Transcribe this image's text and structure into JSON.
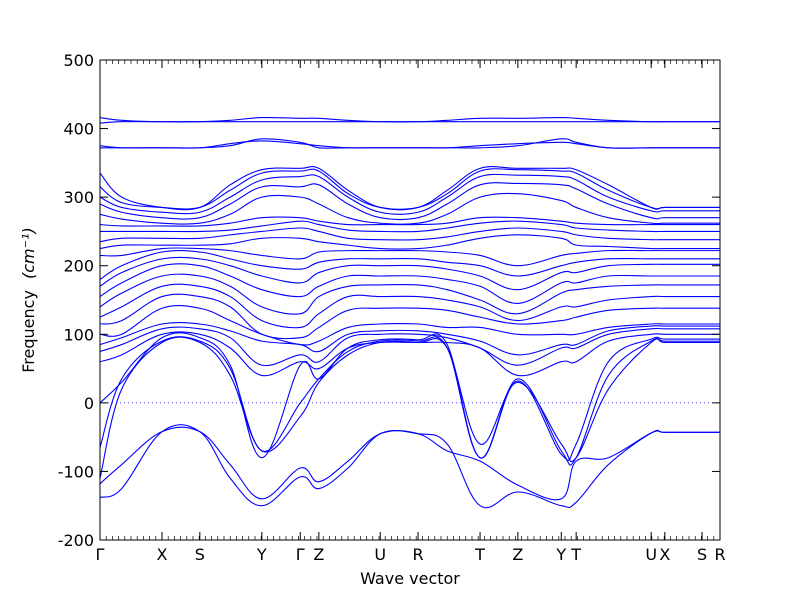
{
  "chart_data": {
    "type": "line",
    "title": "",
    "xlabel": "Wave vector",
    "ylabel": "Frequency",
    "ylabel_unit": "(cm⁻¹)",
    "ylim": [
      -200,
      500
    ],
    "yticks": [
      -200,
      -100,
      0,
      100,
      200,
      300,
      400,
      500
    ],
    "zero_line": true,
    "grid": false,
    "legend": "none",
    "line_color": "#0000ff",
    "xticks": [
      {
        "label": "Γ",
        "frac": 0.0
      },
      {
        "label": "X",
        "frac": 0.1
      },
      {
        "label": "S",
        "frac": 0.161
      },
      {
        "label": "Y",
        "frac": 0.261
      },
      {
        "label": "Γ",
        "frac": 0.323
      },
      {
        "label": "Z",
        "frac": 0.353
      },
      {
        "label": "U",
        "frac": 0.452
      },
      {
        "label": "R",
        "frac": 0.513
      },
      {
        "label": "T",
        "frac": 0.613
      },
      {
        "label": "Z",
        "frac": 0.674
      },
      {
        "label": "Y",
        "frac": 0.744
      },
      {
        "label": "T",
        "frac": 0.768
      },
      {
        "label": "U",
        "frac": 0.889
      },
      {
        "label": "X",
        "frac": 0.911
      },
      {
        "label": "S",
        "frac": 0.971
      },
      {
        "label": "R",
        "frac": 1.0
      }
    ],
    "bands_frac_x": [
      0.0,
      0.035,
      0.1,
      0.161,
      0.21,
      0.261,
      0.323,
      0.353,
      0.4,
      0.452,
      0.513,
      0.56,
      0.613,
      0.674,
      0.744,
      0.768,
      0.82,
      0.889,
      0.911,
      0.971,
      1.0
    ],
    "series": [
      {
        "values": [
          -138,
          -125,
          -42,
          -42,
          -110,
          -150,
          -108,
          -125,
          -95,
          -45,
          -45,
          -60,
          -150,
          -130,
          -150,
          -145,
          -90,
          -44,
          -43,
          -43,
          -43
        ]
      },
      {
        "values": [
          -118,
          -90,
          -42,
          -42,
          -90,
          -140,
          -95,
          -115,
          -85,
          -45,
          -45,
          -70,
          -85,
          -120,
          -140,
          -85,
          -80,
          -44,
          -43,
          -43,
          -43
        ]
      },
      {
        "values": [
          -110,
          20,
          88,
          88,
          40,
          -70,
          -20,
          30,
          70,
          88,
          88,
          80,
          -60,
          30,
          -60,
          -80,
          20,
          88,
          88,
          88,
          88
        ]
      },
      {
        "values": [
          -65,
          35,
          90,
          90,
          50,
          -70,
          0,
          35,
          75,
          90,
          90,
          80,
          -80,
          35,
          -70,
          -80,
          40,
          90,
          90,
          90,
          90
        ]
      },
      {
        "values": [
          0,
          30,
          95,
          95,
          55,
          -80,
          55,
          35,
          80,
          92,
          92,
          85,
          -80,
          32,
          -75,
          -60,
          60,
          93,
          93,
          93,
          93
        ]
      },
      {
        "values": [
          60,
          70,
          100,
          100,
          80,
          40,
          60,
          50,
          80,
          88,
          88,
          88,
          80,
          40,
          60,
          60,
          90,
          100,
          100,
          100,
          100
        ]
      },
      {
        "values": [
          75,
          85,
          108,
          108,
          95,
          55,
          70,
          60,
          95,
          100,
          100,
          95,
          80,
          55,
          80,
          80,
          100,
          108,
          108,
          108,
          108
        ]
      },
      {
        "values": [
          85,
          95,
          115,
          115,
          105,
          90,
          85,
          75,
          100,
          105,
          105,
          100,
          90,
          70,
          85,
          85,
          105,
          112,
          112,
          112,
          112
        ]
      },
      {
        "values": [
          100,
          100,
          138,
          138,
          120,
          100,
          85,
          90,
          110,
          115,
          115,
          110,
          110,
          100,
          100,
          100,
          110,
          115,
          115,
          115,
          115
        ]
      },
      {
        "values": [
          115,
          120,
          155,
          155,
          140,
          100,
          95,
          110,
          135,
          138,
          138,
          135,
          125,
          115,
          120,
          125,
          135,
          138,
          138,
          138,
          138
        ]
      },
      {
        "values": [
          125,
          140,
          170,
          170,
          155,
          120,
          110,
          130,
          155,
          155,
          155,
          150,
          140,
          120,
          140,
          140,
          150,
          155,
          155,
          155,
          155
        ]
      },
      {
        "values": [
          140,
          160,
          185,
          185,
          170,
          140,
          130,
          155,
          170,
          172,
          172,
          165,
          150,
          130,
          160,
          165,
          170,
          172,
          172,
          172,
          172
        ]
      },
      {
        "values": [
          155,
          175,
          200,
          200,
          185,
          165,
          155,
          170,
          185,
          185,
          185,
          180,
          170,
          145,
          175,
          175,
          185,
          185,
          185,
          185,
          185
        ]
      },
      {
        "values": [
          170,
          190,
          210,
          210,
          200,
          185,
          175,
          190,
          200,
          200,
          200,
          195,
          185,
          165,
          190,
          190,
          200,
          202,
          202,
          202,
          202
        ]
      },
      {
        "values": [
          180,
          200,
          220,
          220,
          210,
          200,
          195,
          205,
          210,
          210,
          210,
          205,
          200,
          185,
          200,
          205,
          210,
          210,
          210,
          210,
          210
        ]
      },
      {
        "values": [
          215,
          215,
          225,
          225,
          222,
          215,
          210,
          220,
          222,
          222,
          222,
          220,
          215,
          200,
          215,
          218,
          222,
          222,
          222,
          222,
          222
        ]
      },
      {
        "values": [
          225,
          230,
          230,
          230,
          232,
          240,
          240,
          235,
          230,
          225,
          225,
          230,
          240,
          245,
          240,
          230,
          228,
          225,
          225,
          225,
          225
        ]
      },
      {
        "values": [
          235,
          240,
          240,
          240,
          245,
          250,
          255,
          250,
          240,
          238,
          238,
          242,
          250,
          255,
          250,
          245,
          240,
          238,
          238,
          238,
          238
        ]
      },
      {
        "values": [
          250,
          250,
          250,
          250,
          252,
          258,
          265,
          260,
          252,
          250,
          250,
          255,
          262,
          265,
          260,
          255,
          252,
          250,
          250,
          250,
          250
        ]
      },
      {
        "values": [
          260,
          258,
          258,
          258,
          262,
          270,
          270,
          265,
          260,
          260,
          260,
          262,
          270,
          270,
          265,
          262,
          260,
          260,
          260,
          260,
          260
        ]
      },
      {
        "values": [
          275,
          268,
          262,
          262,
          275,
          300,
          300,
          290,
          270,
          262,
          262,
          275,
          300,
          305,
          295,
          285,
          270,
          262,
          262,
          262,
          262
        ]
      },
      {
        "values": [
          290,
          278,
          270,
          270,
          290,
          315,
          315,
          318,
          290,
          270,
          270,
          290,
          318,
          320,
          318,
          312,
          290,
          270,
          270,
          270,
          270
        ]
      },
      {
        "values": [
          300,
          285,
          278,
          278,
          300,
          325,
          330,
          330,
          300,
          278,
          278,
          300,
          330,
          332,
          330,
          325,
          300,
          280,
          280,
          280,
          280
        ]
      },
      {
        "values": [
          315,
          292,
          285,
          285,
          310,
          335,
          338,
          338,
          305,
          285,
          285,
          305,
          338,
          340,
          338,
          335,
          310,
          285,
          285,
          285,
          285
        ]
      },
      {
        "values": [
          335,
          300,
          285,
          285,
          318,
          340,
          342,
          342,
          310,
          285,
          285,
          310,
          342,
          342,
          342,
          340,
          318,
          285,
          285,
          285,
          285
        ]
      },
      {
        "values": [
          372,
          372,
          372,
          372,
          375,
          385,
          380,
          372,
          372,
          372,
          372,
          372,
          372,
          375,
          385,
          380,
          372,
          372,
          372,
          372,
          372
        ]
      },
      {
        "values": [
          375,
          372,
          372,
          372,
          378,
          382,
          378,
          375,
          372,
          372,
          372,
          372,
          375,
          378,
          380,
          378,
          372,
          372,
          372,
          372,
          372
        ]
      },
      {
        "values": [
          408,
          410,
          410,
          410,
          410,
          410,
          410,
          410,
          410,
          410,
          410,
          410,
          410,
          410,
          410,
          410,
          410,
          410,
          410,
          410,
          410
        ]
      },
      {
        "values": [
          416,
          412,
          410,
          410,
          412,
          416,
          415,
          415,
          412,
          410,
          410,
          412,
          415,
          415,
          416,
          415,
          412,
          410,
          410,
          410,
          410
        ]
      }
    ]
  }
}
